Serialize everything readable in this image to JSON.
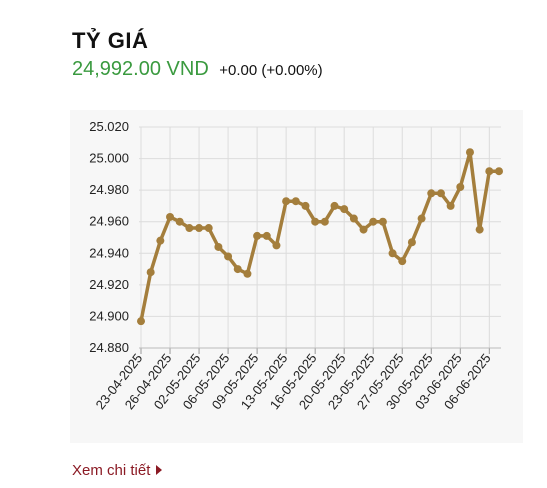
{
  "header": {
    "title": "TỶ GIÁ",
    "price": "24,992.00 VND",
    "change": "+0.00 (+0.00%)"
  },
  "link": {
    "label": "Xem chi tiết"
  },
  "colors": {
    "price": "#3a9a3f",
    "line": "#a47e3c",
    "link": "#8b1a24",
    "panel": "#f7f7f7"
  },
  "chart_data": {
    "type": "line",
    "ylim": [
      24.88,
      25.02
    ],
    "yticks": [
      "25.020",
      "25.000",
      "24.980",
      "24.960",
      "24.940",
      "24.920",
      "24.900",
      "24.880"
    ],
    "xticks": [
      "23-04-2025",
      "26-04-2025",
      "02-05-2025",
      "06-05-2025",
      "09-05-2025",
      "13-05-2025",
      "16-05-2025",
      "20-05-2025",
      "23-05-2025",
      "27-05-2025",
      "30-05-2025",
      "03-06-2025",
      "06-06-2025"
    ],
    "grid": true,
    "values": [
      24.897,
      24.928,
      24.948,
      24.963,
      24.96,
      24.956,
      24.956,
      24.956,
      24.944,
      24.938,
      24.93,
      24.927,
      24.951,
      24.951,
      24.945,
      24.973,
      24.973,
      24.97,
      24.96,
      24.96,
      24.97,
      24.968,
      24.962,
      24.955,
      24.96,
      24.96,
      24.94,
      24.935,
      24.947,
      24.962,
      24.978,
      24.978,
      24.97,
      24.982,
      25.004,
      24.955,
      24.992,
      24.992
    ]
  }
}
